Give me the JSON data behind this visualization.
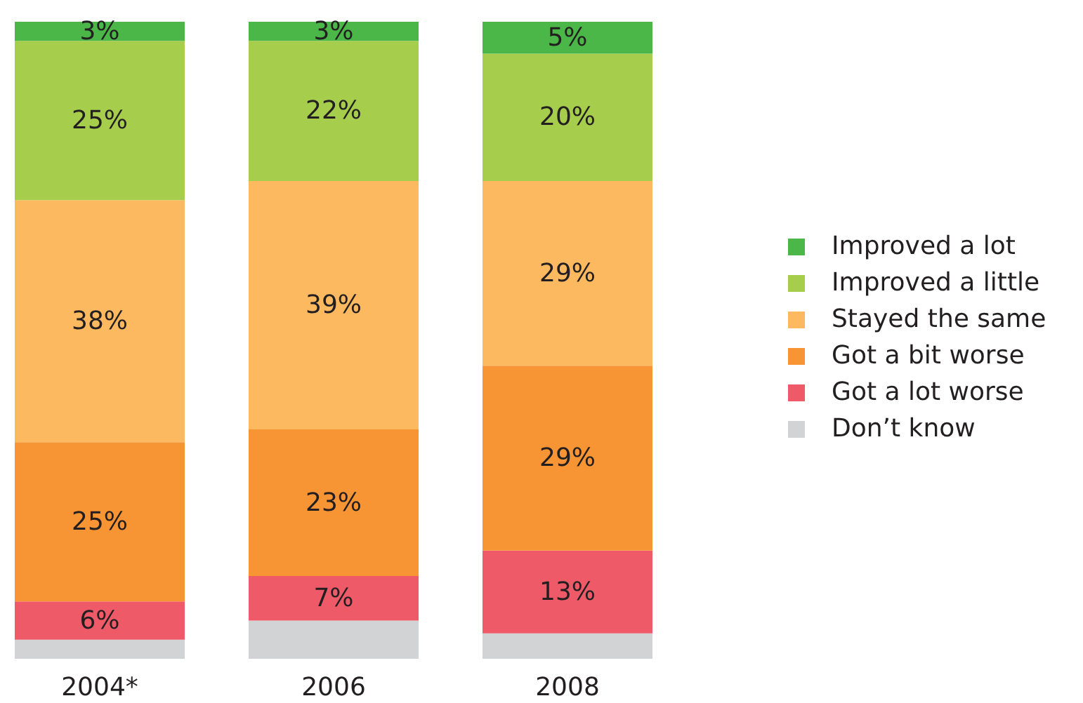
{
  "chart_data": {
    "type": "bar",
    "stacked": true,
    "categories": [
      "2004*",
      "2006",
      "2008"
    ],
    "series": [
      {
        "name": "Don’t know",
        "color": "#d1d3d4",
        "values": [
          3,
          6,
          4
        ],
        "value_labels": [
          null,
          null,
          null
        ]
      },
      {
        "name": "Got a lot worse",
        "color": "#ef5a69",
        "values": [
          6,
          7,
          13
        ],
        "value_labels": [
          "6%",
          "7%",
          "13%"
        ]
      },
      {
        "name": "Got a bit worse",
        "color": "#f79433",
        "values": [
          25,
          23,
          29
        ],
        "value_labels": [
          "25%",
          "23%",
          "29%"
        ]
      },
      {
        "name": "Stayed the same",
        "color": "#fcb960",
        "values": [
          38,
          39,
          29
        ],
        "value_labels": [
          "38%",
          "39%",
          "29%"
        ]
      },
      {
        "name": "Improved a little",
        "color": "#a6ce4c",
        "values": [
          25,
          22,
          20
        ],
        "value_labels": [
          "25%",
          "22%",
          "20%"
        ]
      },
      {
        "name": "Improved a lot",
        "color": "#4bb748",
        "values": [
          3,
          3,
          5
        ],
        "value_labels": [
          "3%",
          "3%",
          "5%"
        ]
      }
    ],
    "legend": "right",
    "grid": false
  }
}
